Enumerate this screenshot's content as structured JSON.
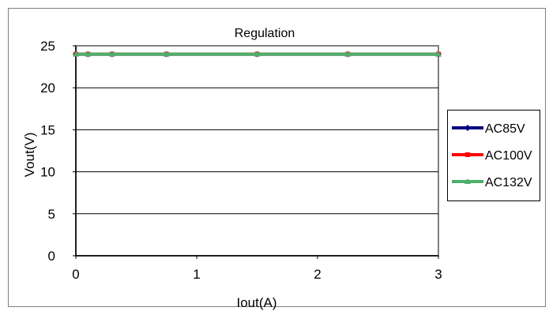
{
  "chart_data": {
    "type": "line",
    "title": "Regulation",
    "xlabel": "Iout(A)",
    "ylabel": "Vout(V)",
    "xlim": [
      0,
      3
    ],
    "ylim": [
      0,
      25
    ],
    "x_ticks": [
      0,
      1,
      2,
      3
    ],
    "y_ticks": [
      0,
      5,
      10,
      15,
      20,
      25
    ],
    "grid": "horizontal",
    "legend_position": "right",
    "x": [
      0,
      0.1,
      0.3,
      0.75,
      1.5,
      2.25,
      3
    ],
    "series": [
      {
        "name": "AC85V",
        "color": "#00007f",
        "marker": "diamond",
        "values": [
          24,
          24,
          24,
          24,
          24,
          24,
          24
        ]
      },
      {
        "name": "AC100V",
        "color": "#ff0000",
        "marker": "square",
        "values": [
          24,
          24,
          24,
          24,
          24,
          24,
          24
        ]
      },
      {
        "name": "AC132V",
        "color": "#4caf6a",
        "marker": "triangle",
        "values": [
          24,
          24,
          24,
          24,
          24,
          24,
          24
        ]
      }
    ]
  }
}
